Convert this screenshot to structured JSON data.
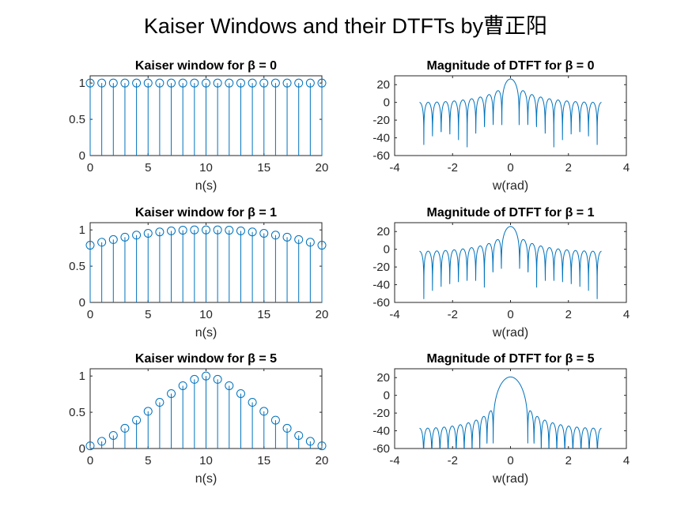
{
  "figure_title": "Kaiser Windows and their DTFTs by曹正阳",
  "colors": {
    "series": "#0072bd",
    "axes": "#262626"
  },
  "chart_data": [
    {
      "type": "stem",
      "title": "Kaiser window for β = 0",
      "xlabel": "n(s)",
      "ylabel": "",
      "xlim": [
        0,
        20
      ],
      "ylim": [
        0,
        1.1
      ],
      "xticks": [
        0,
        5,
        10,
        15,
        20
      ],
      "yticks": [
        0,
        0.5,
        1
      ],
      "x": [
        0,
        1,
        2,
        3,
        4,
        5,
        6,
        7,
        8,
        9,
        10,
        11,
        12,
        13,
        14,
        15,
        16,
        17,
        18,
        19,
        20
      ],
      "y": [
        1,
        1,
        1,
        1,
        1,
        1,
        1,
        1,
        1,
        1,
        1,
        1,
        1,
        1,
        1,
        1,
        1,
        1,
        1,
        1,
        1
      ]
    },
    {
      "type": "line",
      "title": "Magnitude of DTFT for β = 0",
      "xlabel": "w(rad)",
      "ylabel": "",
      "xlim": [
        -4,
        4
      ],
      "ylim": [
        -60,
        30
      ],
      "xticks": [
        -4,
        -2,
        0,
        2,
        4
      ],
      "yticks": [
        -60,
        -40,
        -20,
        0,
        20
      ],
      "beta": 0,
      "N": 21,
      "w_range": [
        -3.1416,
        3.1416
      ]
    },
    {
      "type": "stem",
      "title": "Kaiser window for β = 1",
      "xlabel": "n(s)",
      "ylabel": "",
      "xlim": [
        0,
        20
      ],
      "ylim": [
        0,
        1.1
      ],
      "xticks": [
        0,
        5,
        10,
        15,
        20
      ],
      "yticks": [
        0,
        0.5,
        1
      ],
      "x": [
        0,
        1,
        2,
        3,
        4,
        5,
        6,
        7,
        8,
        9,
        10,
        11,
        12,
        13,
        14,
        15,
        16,
        17,
        18,
        19,
        20
      ],
      "y": [
        0.789,
        0.83,
        0.867,
        0.9,
        0.928,
        0.953,
        0.972,
        0.987,
        0.996,
        1.0,
        1.0,
        1.0,
        0.996,
        0.987,
        0.972,
        0.953,
        0.928,
        0.9,
        0.867,
        0.83,
        0.789
      ]
    },
    {
      "type": "line",
      "title": "Magnitude of DTFT for β = 1",
      "xlabel": "w(rad)",
      "ylabel": "",
      "xlim": [
        -4,
        4
      ],
      "ylim": [
        -60,
        30
      ],
      "xticks": [
        -4,
        -2,
        0,
        2,
        4
      ],
      "yticks": [
        -60,
        -40,
        -20,
        0,
        20
      ],
      "beta": 1,
      "N": 21,
      "w_range": [
        -3.1416,
        3.1416
      ]
    },
    {
      "type": "stem",
      "title": "Kaiser window for β = 5",
      "xlabel": "n(s)",
      "ylabel": "",
      "xlim": [
        0,
        20
      ],
      "ylim": [
        0,
        1.1
      ],
      "xticks": [
        0,
        5,
        10,
        15,
        20
      ],
      "yticks": [
        0,
        0.5,
        1
      ],
      "x": [
        0,
        1,
        2,
        3,
        4,
        5,
        6,
        7,
        8,
        9,
        10,
        11,
        12,
        13,
        14,
        15,
        16,
        17,
        18,
        19,
        20
      ],
      "y": [
        0.037,
        0.099,
        0.18,
        0.279,
        0.391,
        0.513,
        0.637,
        0.757,
        0.866,
        0.954,
        1.0,
        0.954,
        0.866,
        0.757,
        0.637,
        0.513,
        0.391,
        0.279,
        0.18,
        0.099,
        0.037
      ]
    },
    {
      "type": "line",
      "title": "Magnitude of DTFT for β = 5",
      "xlabel": "w(rad)",
      "ylabel": "",
      "xlim": [
        -4,
        4
      ],
      "ylim": [
        -60,
        30
      ],
      "xticks": [
        -4,
        -2,
        0,
        2,
        4
      ],
      "yticks": [
        -60,
        -40,
        -20,
        0,
        20
      ],
      "beta": 5,
      "N": 21,
      "w_range": [
        -3.1416,
        3.1416
      ]
    }
  ]
}
